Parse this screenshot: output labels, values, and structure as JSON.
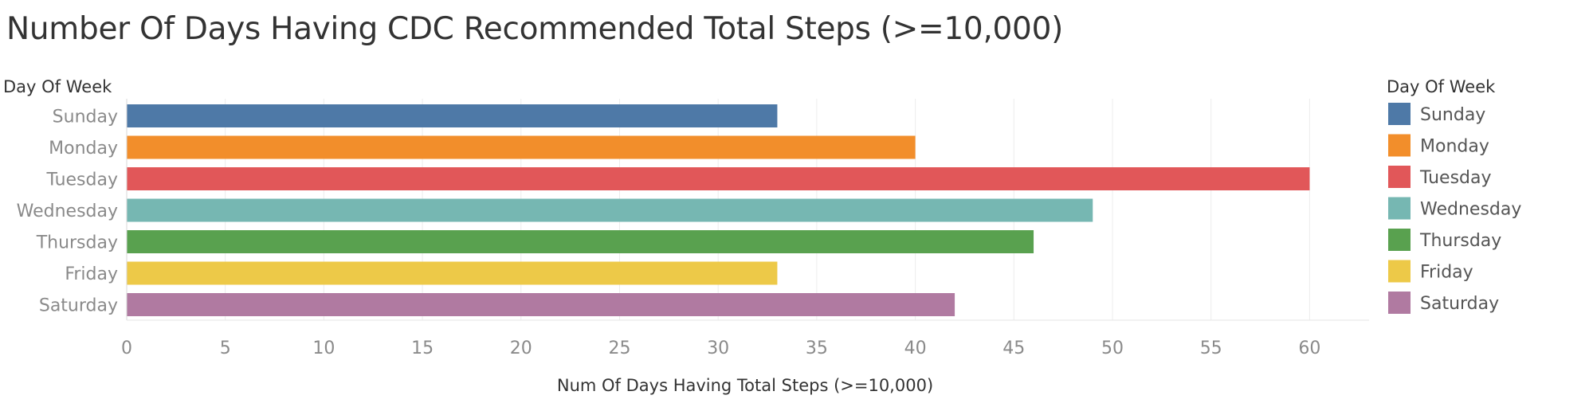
{
  "chart_data": {
    "type": "bar",
    "orientation": "horizontal",
    "title": "Number Of Days Having CDC Recommended Total Steps (>=10,000)",
    "row_header": "Day Of Week",
    "xlabel": "Num Of Days Having Total Steps (>=10,000)",
    "categories": [
      "Sunday",
      "Monday",
      "Tuesday",
      "Wednesday",
      "Thursday",
      "Friday",
      "Saturday"
    ],
    "values": [
      33,
      40,
      60,
      49,
      46,
      33,
      42
    ],
    "colors": [
      "#4e79a7",
      "#f28e2b",
      "#e15759",
      "#76b7b2",
      "#59a14f",
      "#edc948",
      "#b07aa1"
    ],
    "xlim": [
      0,
      63
    ],
    "xticks": [
      0,
      5,
      10,
      15,
      20,
      25,
      30,
      35,
      40,
      45,
      50,
      55,
      60
    ],
    "grid": true,
    "legend": {
      "title": "Day Of Week",
      "position": "right",
      "items": [
        "Sunday",
        "Monday",
        "Tuesday",
        "Wednesday",
        "Thursday",
        "Friday",
        "Saturday"
      ]
    }
  }
}
